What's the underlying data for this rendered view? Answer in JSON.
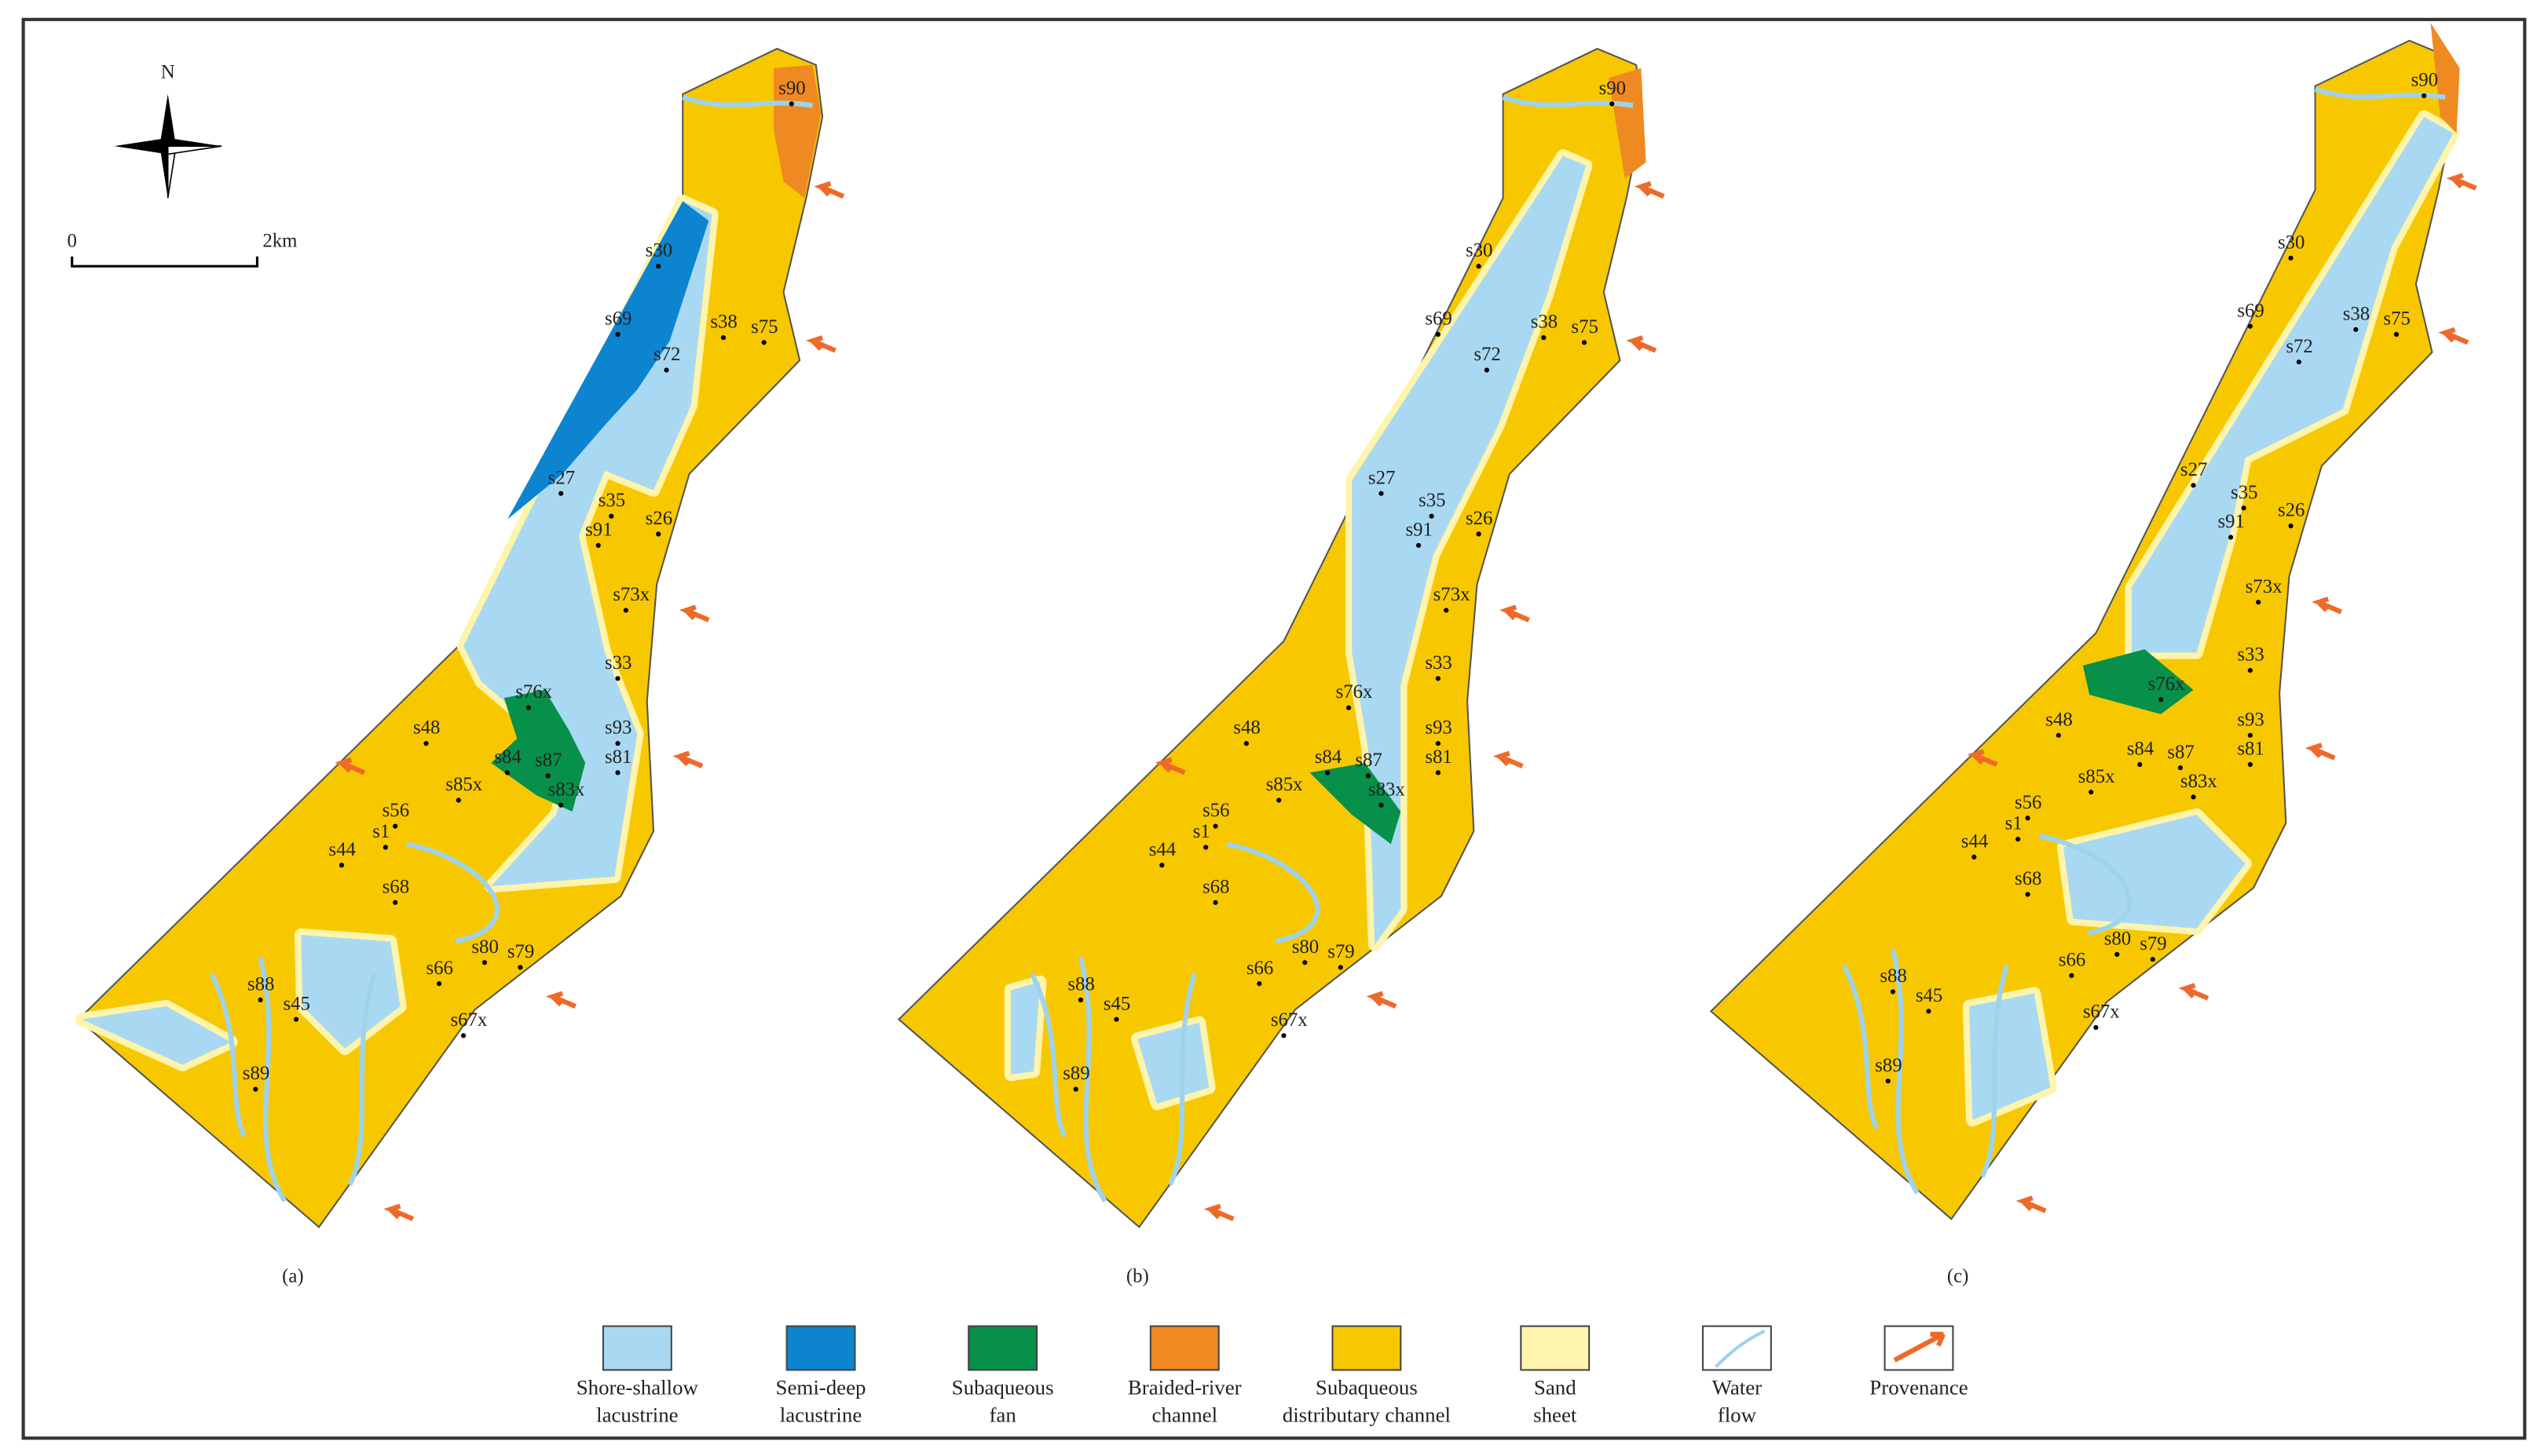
{
  "north": "N",
  "scale": {
    "start": "0",
    "end": "2km"
  },
  "panels": [
    {
      "label": "(a)",
      "wells": [
        "s90",
        "s30",
        "s69",
        "s72",
        "s38",
        "s75",
        "s27",
        "s35",
        "s91",
        "s26",
        "s73x",
        "s33",
        "s76x",
        "s93",
        "s81",
        "s48",
        "s84",
        "s87",
        "s85x",
        "s83x",
        "s56",
        "s1",
        "s44",
        "s68",
        "s66",
        "s80",
        "s79",
        "s88",
        "s45",
        "s67x",
        "s89"
      ]
    },
    {
      "label": "(b)",
      "wells": [
        "s90",
        "s30",
        "s69",
        "s72",
        "s38",
        "s75",
        "s27",
        "s35",
        "s91",
        "s26",
        "s73x",
        "s33",
        "s76x",
        "s93",
        "s81",
        "s48",
        "s84",
        "s87",
        "s85x",
        "s83x",
        "s56",
        "s1",
        "s44",
        "s68",
        "s66",
        "s80",
        "s79",
        "s88",
        "s45",
        "s67x",
        "s89"
      ]
    },
    {
      "label": "(c)",
      "wells": [
        "s90",
        "s30",
        "s69",
        "s72",
        "s38",
        "s75",
        "s27",
        "s35",
        "s91",
        "s26",
        "s73x",
        "s33",
        "s76x",
        "s93",
        "s81",
        "s48",
        "s84",
        "s87",
        "s85x",
        "s83x",
        "s56",
        "s1",
        "s44",
        "s68",
        "s66",
        "s80",
        "s79",
        "s88",
        "s45",
        "s67x",
        "s89"
      ]
    }
  ],
  "legend": [
    {
      "label": [
        "Shore-shallow",
        "lacustrine"
      ]
    },
    {
      "label": [
        "Semi-deep",
        "lacustrine"
      ]
    },
    {
      "label": [
        "Subaqueous",
        "fan"
      ]
    },
    {
      "label": [
        "Braided-river",
        "channel"
      ]
    },
    {
      "label": [
        "Subaqueous",
        "distributary  channel"
      ]
    },
    {
      "label": [
        "Sand",
        "sheet"
      ]
    },
    {
      "label": [
        "Water",
        "flow"
      ]
    },
    {
      "label": [
        "Provenance"
      ]
    }
  ]
}
